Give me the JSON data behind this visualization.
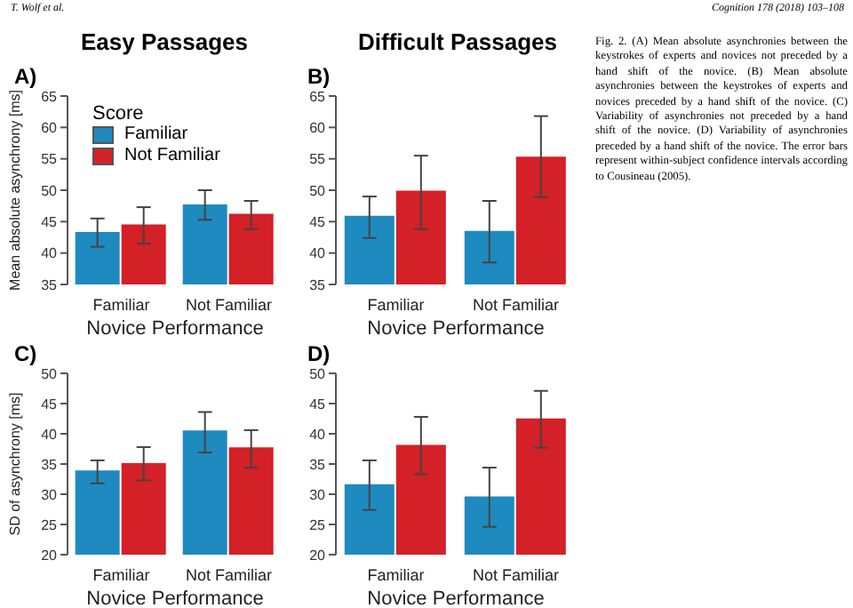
{
  "chart_data": [
    {
      "type": "bar",
      "title": "Easy Passages",
      "subtitle": "A)",
      "xlabel": "Novice Performance",
      "ylabel": "Mean absolute asynchrony [ms]",
      "legend_title": "Score",
      "legend": "top left",
      "categories": [
        "Familiar",
        "Not Familiar"
      ],
      "ylim": [
        35,
        65
      ],
      "yticks": [
        35,
        40,
        45,
        50,
        55,
        60,
        65
      ],
      "annotations": [
        "T. Wolf et al."
      ],
      "series": [
        {
          "name": "Familiar",
          "color": "#1f8ac0",
          "values": [
            43.2,
            47.6
          ],
          "errors": [
            [
              41,
              45.5
            ],
            [
              45.3,
              50
            ]
          ]
        },
        {
          "name": "Not Familiar",
          "color": "#d42027",
          "values": [
            44.4,
            46.1
          ],
          "errors": [
            [
              41.5,
              47.3
            ],
            [
              43.8,
              48.3
            ]
          ]
        }
      ]
    },
    {
      "type": "bar",
      "title": "Difficult Passages",
      "subtitle": "B)",
      "xlabel": "Novice Performance",
      "categories": [
        "Familiar",
        "Not Familiar"
      ],
      "ylim": [
        35,
        65
      ],
      "yticks": [
        35,
        40,
        45,
        50,
        55,
        60,
        65
      ],
      "annotations": [
        "Cognition 178 (2018) 103–108",
        "Fig. 2. (A) Mean absolute asynchronies between the keystrokes of experts and novices not preceded by a hand shift of the novice. (B) Mean absolute asynchronies between the keystrokes of experts and novices preceded by a hand shift of the novice. (C) Variability of asynchronies not preceded by a hand shift of the novice. (D) Variability of asynchronies preceded by a hand shift of the novice. The error bars represent within-subject confidence intervals according to Cousineau (2005)."
      ],
      "series": [
        {
          "color": "#1f8ac0",
          "values": [
            45.8,
            43.4
          ],
          "errors": [
            [
              42.4,
              49
            ],
            [
              38.5,
              48.3
            ]
          ]
        },
        {
          "color": "#d42027",
          "values": [
            49.8,
            55.2
          ],
          "errors": [
            [
              43.8,
              55.5
            ],
            [
              48.9,
              61.8
            ]
          ]
        }
      ]
    },
    {
      "type": "bar",
      "subtitle": "C)",
      "xlabel": "Novice Performance",
      "ylabel": "SD of asynchrony [ms]",
      "categories": [
        "Familiar",
        "Not Familiar"
      ],
      "ylim": [
        20,
        50
      ],
      "yticks": [
        20,
        25,
        30,
        35,
        40,
        45,
        50
      ],
      "series": [
        {
          "color": "#1f8ac0",
          "values": [
            33.8,
            40.4
          ],
          "errors": [
            [
              31.8,
              35.6
            ],
            [
              36.9,
              43.6
            ]
          ]
        },
        {
          "color": "#d42027",
          "values": [
            35,
            37.6
          ],
          "errors": [
            [
              32.3,
              37.8
            ],
            [
              34.4,
              40.6
            ]
          ]
        }
      ]
    },
    {
      "type": "bar",
      "subtitle": "D)",
      "xlabel": "Novice Performance",
      "categories": [
        "Familiar",
        "Not Familiar"
      ],
      "ylim": [
        20,
        50
      ],
      "yticks": [
        20,
        25,
        30,
        35,
        40,
        45,
        50
      ],
      "series": [
        {
          "color": "#1f8ac0",
          "values": [
            31.5,
            29.5
          ],
          "errors": [
            [
              27.4,
              35.6
            ],
            [
              24.6,
              34.4
            ]
          ]
        },
        {
          "color": "#d42027",
          "values": [
            38,
            42.4
          ],
          "errors": [
            [
              33.3,
              42.8
            ],
            [
              37.7,
              47.1
            ]
          ]
        }
      ]
    }
  ]
}
